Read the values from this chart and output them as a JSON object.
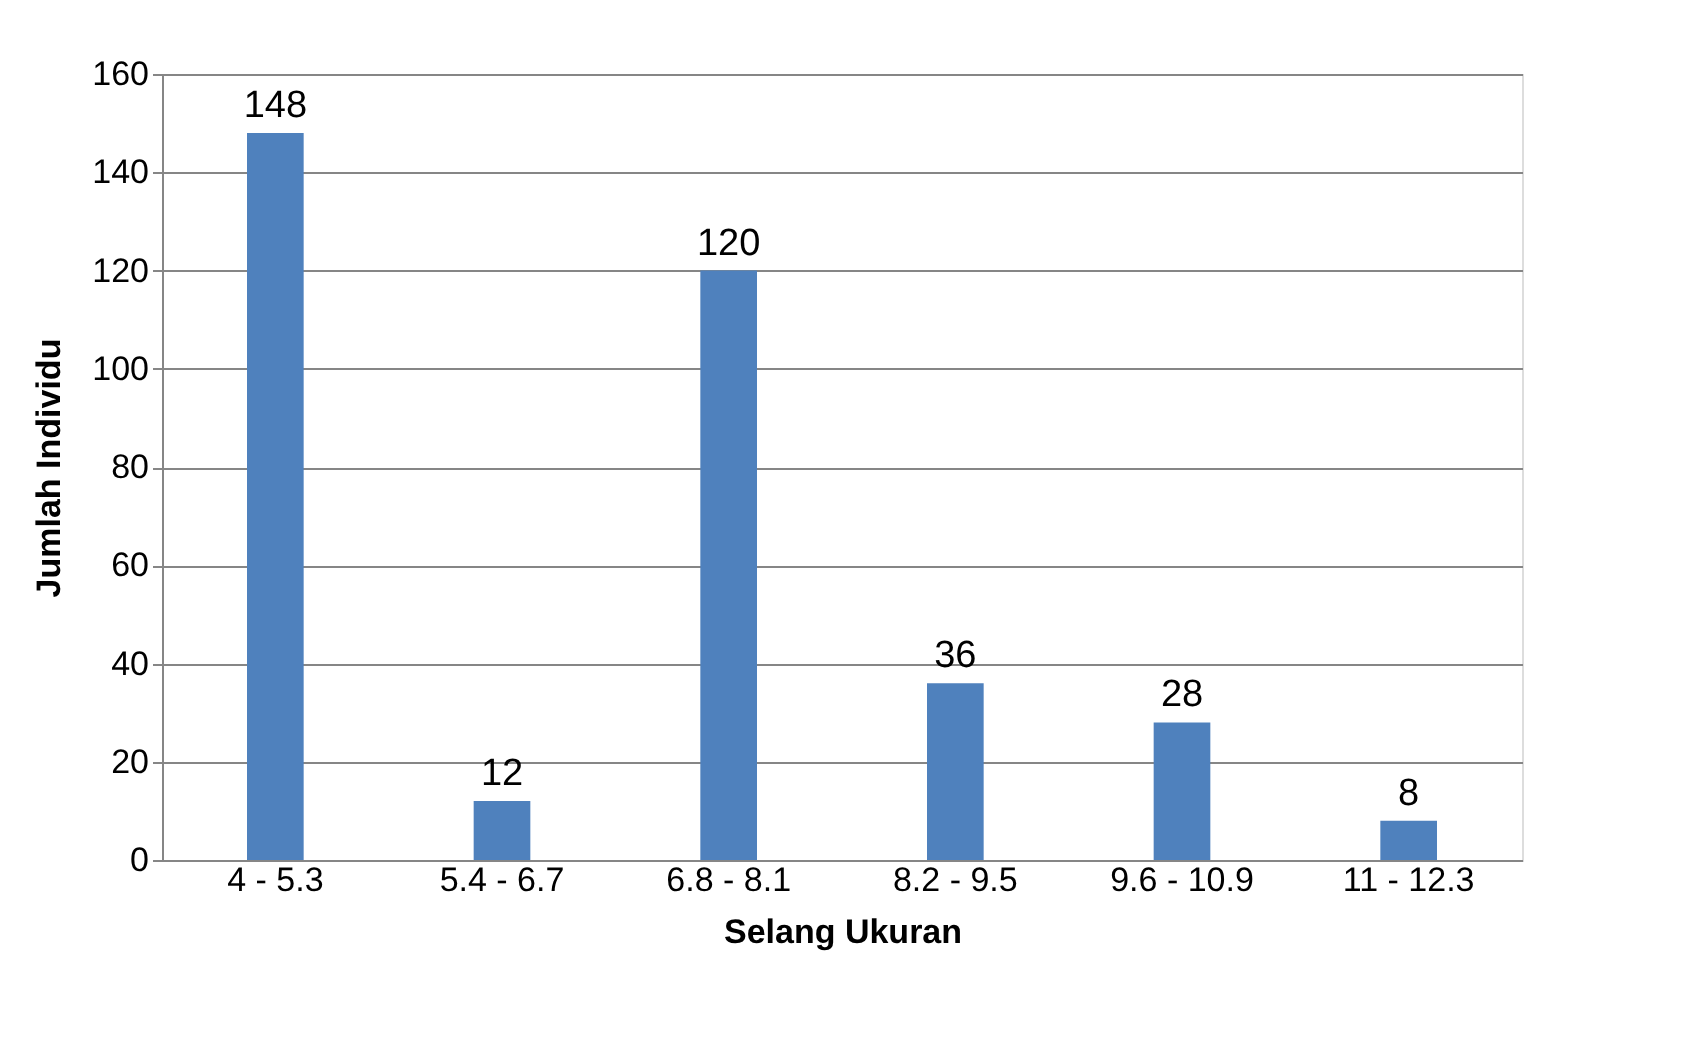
{
  "chart_data": {
    "type": "bar",
    "xlabel": "Selang Ukuran",
    "ylabel": "Jumlah Individu",
    "categories": [
      "4 - 5.3",
      "5.4 - 6.7",
      "6.8 - 8.1",
      "8.2 - 9.5",
      "9.6 - 10.9",
      "11 - 12.3"
    ],
    "values": [
      148,
      12,
      120,
      36,
      28,
      8
    ],
    "color": "#4f81bd",
    "ylim": [
      0,
      160
    ],
    "yticks": [
      0,
      20,
      40,
      60,
      80,
      100,
      120,
      140,
      160
    ],
    "grid": "y",
    "data_labels": true
  }
}
